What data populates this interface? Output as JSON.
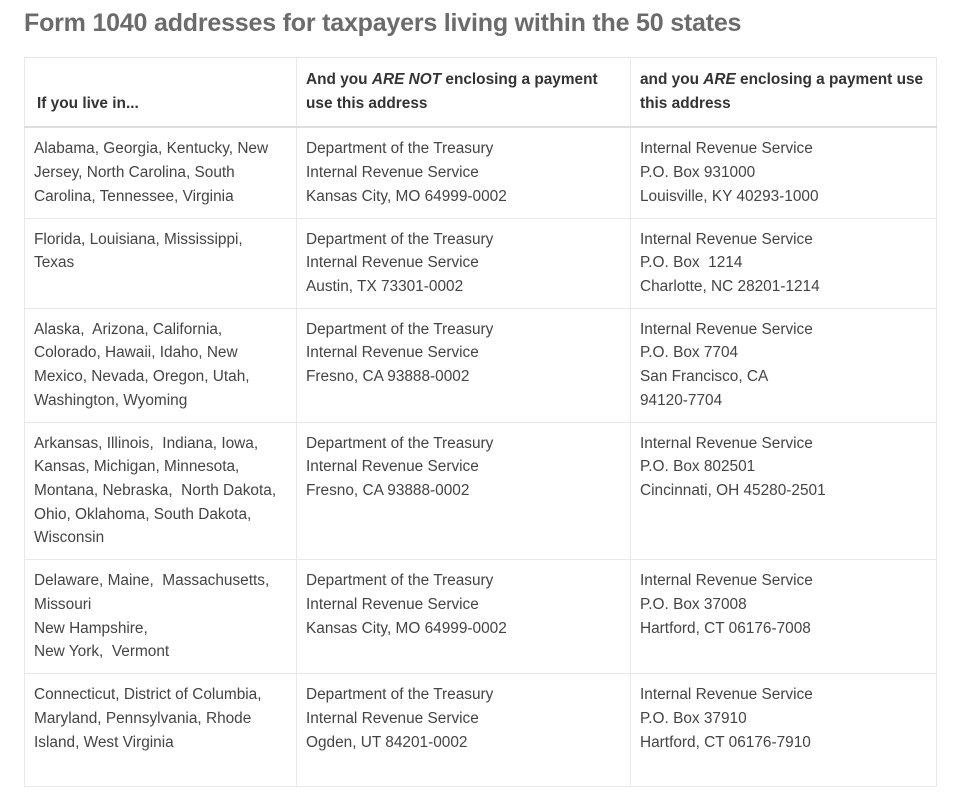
{
  "title": "Form 1040 addresses for taxpayers living within the 50 states",
  "table": {
    "headers": {
      "col1": "If you live in...",
      "col2": {
        "prefix": "And you ",
        "emphasis": "ARE NOT",
        "suffix": " enclosing a payment use this address"
      },
      "col3": {
        "prefix": "and you ",
        "emphasis": "ARE",
        "suffix": " enclosing a payment use this address"
      }
    },
    "rows": [
      {
        "states": [
          "Alabama, Georgia, Kentucky, New",
          "Jersey, North Carolina, South",
          "Carolina, Tennessee, Virginia"
        ],
        "no_payment": [
          "Department of the Treasury",
          "Internal Revenue Service",
          "Kansas City, MO 64999-0002"
        ],
        "with_payment": [
          "Internal Revenue Service",
          "P.O. Box 931000",
          "Louisville, KY 40293-1000"
        ]
      },
      {
        "states": [
          "Florida, Louisiana, Mississippi,",
          "Texas"
        ],
        "no_payment": [
          "Department of the Treasury",
          "Internal Revenue Service",
          "Austin, TX 73301-0002"
        ],
        "with_payment": [
          "Internal Revenue Service",
          "P.O. Box  1214",
          "Charlotte, NC 28201-1214"
        ]
      },
      {
        "states": [
          "Alaska,  Arizona, California,",
          "Colorado, Hawaii, Idaho, New",
          "Mexico, Nevada, Oregon, Utah,",
          "Washington, Wyoming"
        ],
        "no_payment": [
          "Department of the Treasury",
          "Internal Revenue Service",
          "Fresno, CA 93888-0002"
        ],
        "with_payment": [
          "Internal Revenue Service",
          "P.O. Box 7704",
          "San Francisco, CA",
          "94120-7704"
        ]
      },
      {
        "states": [
          "Arkansas, Illinois,  Indiana, Iowa,",
          "Kansas, Michigan, Minnesota,",
          "Montana, Nebraska,  North Dakota,",
          "Ohio, Oklahoma, South Dakota,",
          "Wisconsin"
        ],
        "no_payment": [
          "Department of the Treasury",
          "Internal Revenue Service",
          "Fresno, CA 93888-0002"
        ],
        "with_payment": [
          "Internal Revenue Service",
          "P.O. Box 802501",
          "Cincinnati, OH 45280-2501"
        ]
      },
      {
        "states": [
          "Delaware, Maine,  Massachusetts,",
          "Missouri",
          "New Hampshire,",
          "New York,  Vermont"
        ],
        "no_payment": [
          "Department of the Treasury",
          "Internal Revenue Service",
          "Kansas City, MO 64999-0002"
        ],
        "with_payment": [
          "Internal Revenue Service",
          "P.O. Box 37008",
          "Hartford, CT 06176-7008"
        ]
      },
      {
        "states": [
          "Connecticut, District of Columbia,",
          "Maryland, Pennsylvania, Rhode",
          "Island, West Virginia"
        ],
        "no_payment": [
          "Department of the Treasury",
          "Internal Revenue Service",
          "Ogden, UT 84201-0002"
        ],
        "with_payment": [
          "Internal Revenue Service",
          "P.O. Box 37910",
          "Hartford, CT 06176-7910"
        ]
      }
    ]
  }
}
